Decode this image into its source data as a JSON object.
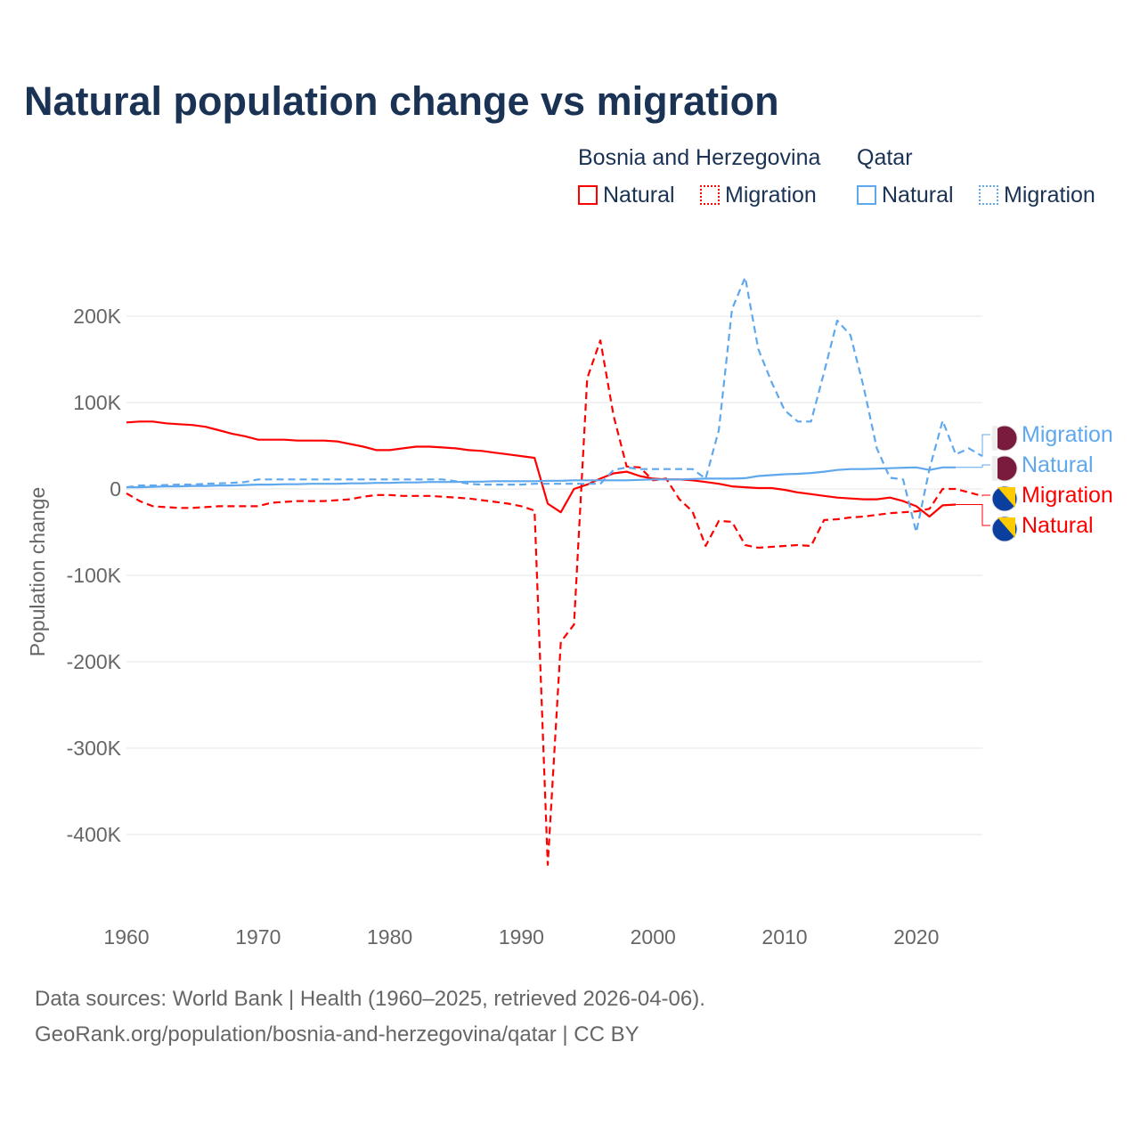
{
  "chart_data": {
    "type": "line",
    "title": "Natural population change vs migration",
    "ylabel": "Population change",
    "xlabel": "",
    "ylim": [
      -450000,
      250000
    ],
    "xlim": [
      1960,
      2025
    ],
    "yticks": [
      {
        "v": 200000,
        "l": "200K"
      },
      {
        "v": 100000,
        "l": "100K"
      },
      {
        "v": 0,
        "l": "0"
      },
      {
        "v": -100000,
        "l": "-100K"
      },
      {
        "v": -200000,
        "l": "-200K"
      },
      {
        "v": -300000,
        "l": "-300K"
      },
      {
        "v": -400000,
        "l": "-400K"
      }
    ],
    "xticks": [
      1960,
      1970,
      1980,
      1990,
      2000,
      2010,
      2020
    ],
    "legend": {
      "groups": [
        {
          "name": "Bosnia and Herzegovina",
          "items": [
            "Natural",
            "Migration"
          ]
        },
        {
          "name": "Qatar",
          "items": [
            "Natural",
            "Migration"
          ]
        }
      ]
    },
    "series": [
      {
        "name": "Bosnia and Herzegovina Natural",
        "label": "Natural",
        "color": "#ff0000",
        "dash": false,
        "start": 1960,
        "values": [
          77,
          78,
          78,
          76,
          75,
          74,
          72,
          68,
          64,
          61,
          57,
          57,
          57,
          56,
          56,
          56,
          55,
          52,
          49,
          45,
          45,
          47,
          49,
          49,
          48,
          47,
          45,
          44,
          42,
          40,
          38,
          36,
          -17,
          -27,
          0,
          5,
          12,
          18,
          20,
          15,
          12,
          11,
          11,
          10,
          8,
          6,
          3,
          2,
          1,
          1,
          -1,
          -4,
          -6,
          -8,
          -10,
          -11,
          -12,
          -12,
          -10,
          -14,
          -20,
          -32,
          -19,
          -18
        ]
      },
      {
        "name": "Bosnia and Herzegovina Migration",
        "label": "Migration",
        "color": "#ff0000",
        "dash": true,
        "start": 1960,
        "values": [
          -5,
          -14,
          -20,
          -21,
          -22,
          -22,
          -21,
          -20,
          -20,
          -20,
          -20,
          -16,
          -15,
          -14,
          -14,
          -14,
          -13,
          -12,
          -9,
          -7,
          -7,
          -8,
          -8,
          -8,
          -9,
          -10,
          -11,
          -13,
          -15,
          -17,
          -20,
          -25,
          -435,
          -177,
          -157,
          128,
          172,
          85,
          26,
          25,
          10,
          12,
          -12,
          -26,
          -66,
          -37,
          -38,
          -65,
          -68,
          -67,
          -66,
          -65,
          -66,
          -36,
          -35,
          -33,
          -32,
          -30,
          -28,
          -27,
          -26,
          -23,
          0,
          0,
          -4,
          -8
        ]
      },
      {
        "name": "Qatar Natural",
        "label": "Natural",
        "color": "#5fa8ed",
        "dash": false,
        "start": 1960,
        "values": [
          2,
          2,
          2.5,
          3,
          3,
          3.5,
          3.5,
          4,
          4,
          4.5,
          5,
          5,
          5.5,
          5.5,
          6,
          6,
          6,
          6.5,
          6.5,
          7,
          7,
          7.5,
          7.5,
          8,
          8,
          8,
          8.5,
          8.5,
          9,
          9,
          9,
          9,
          9.5,
          9.5,
          10,
          10,
          10,
          10,
          10,
          10.5,
          11,
          11,
          11,
          11.5,
          12,
          12,
          12,
          12.5,
          15,
          16,
          17,
          17.5,
          18.5,
          20,
          22,
          23,
          23,
          23.5,
          24,
          24.5,
          25,
          22,
          25,
          25
        ]
      },
      {
        "name": "Qatar Migration",
        "label": "Migration",
        "color": "#5fa8ed",
        "dash": true,
        "start": 1960,
        "values": [
          2,
          4,
          4,
          4.5,
          5,
          5,
          6,
          6.5,
          7,
          8,
          11,
          11,
          11,
          11,
          11,
          11,
          11,
          11,
          11,
          11,
          11,
          11,
          11,
          11,
          11,
          9,
          6,
          5,
          5,
          5,
          5,
          6,
          6,
          6,
          6,
          6,
          6,
          22,
          25,
          23,
          23,
          23,
          23,
          23,
          12,
          68,
          208,
          245,
          162,
          124,
          91,
          78,
          78,
          135,
          195,
          178,
          118,
          47,
          13,
          11,
          -50,
          23,
          79,
          40,
          47,
          38
        ]
      }
    ],
    "units": "thousands"
  },
  "source": {
    "line1": "Data sources: World Bank | Health (1960–2025, retrieved 2026-04-06).",
    "line2": "GeoRank.org/population/bosnia-and-herzegovina/qatar | CC BY"
  }
}
